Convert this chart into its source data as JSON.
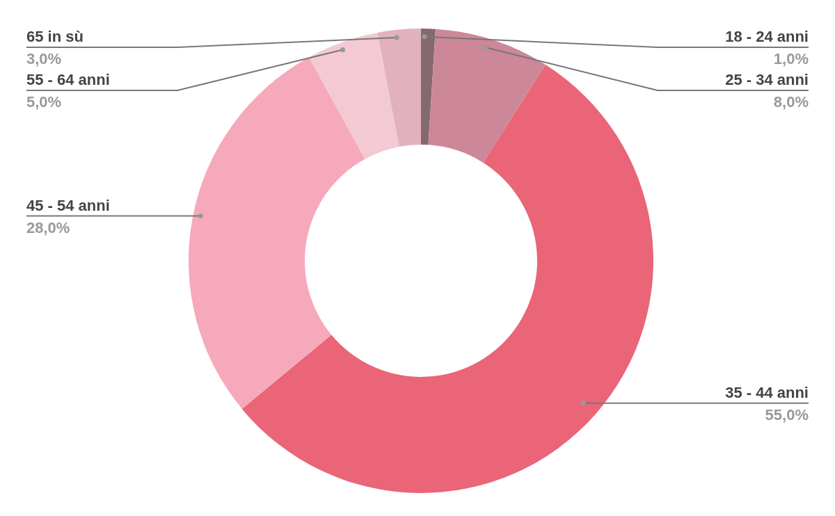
{
  "chart_data": {
    "type": "donut",
    "categories": [
      "18 - 24 anni",
      "25 - 34 anni",
      "35 - 44 anni",
      "45 - 54 anni",
      "55 - 64 anni",
      "65 in sù"
    ],
    "values": [
      1,
      8,
      55,
      28,
      5,
      3
    ],
    "value_labels": [
      "1,0%",
      "8,0%",
      "55,0%",
      "28,0%",
      "5,0%",
      "3,0%"
    ],
    "colors": [
      "#846a70",
      "#cc8898",
      "#e96577",
      "#f6a9bb",
      "#f3c9d3",
      "#e2b1be"
    ]
  }
}
